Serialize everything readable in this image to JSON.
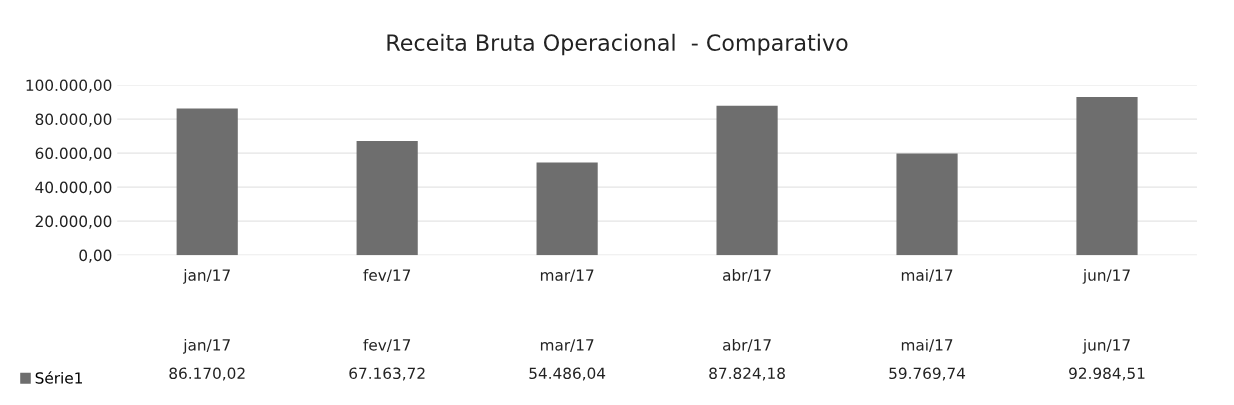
{
  "chart_data": {
    "type": "bar",
    "title": "Receita Bruta Operacional  - Comparativo",
    "categories": [
      "jan/17",
      "fev/17",
      "mar/17",
      "abr/17",
      "mai/17",
      "jun/17"
    ],
    "series": [
      {
        "name": "Série1",
        "color": "#6e6e6e",
        "values": [
          86170.02,
          67163.72,
          54486.04,
          87824.18,
          59769.74,
          92984.51
        ],
        "value_labels": [
          "86.170,02",
          "67.163,72",
          "54.486,04",
          "87.824,18",
          "59.769,74",
          "92.984,51"
        ]
      }
    ],
    "ylim": [
      0,
      100000
    ],
    "yticks": [
      {
        "value": 0,
        "label": "0,00"
      },
      {
        "value": 20000,
        "label": "20.000,00"
      },
      {
        "value": 40000,
        "label": "40.000,00"
      },
      {
        "value": 60000,
        "label": "60.000,00"
      },
      {
        "value": 80000,
        "label": "80.000,00"
      },
      {
        "value": 100000,
        "label": "100.000,00"
      }
    ],
    "grid": "y",
    "legend": "lower left"
  }
}
